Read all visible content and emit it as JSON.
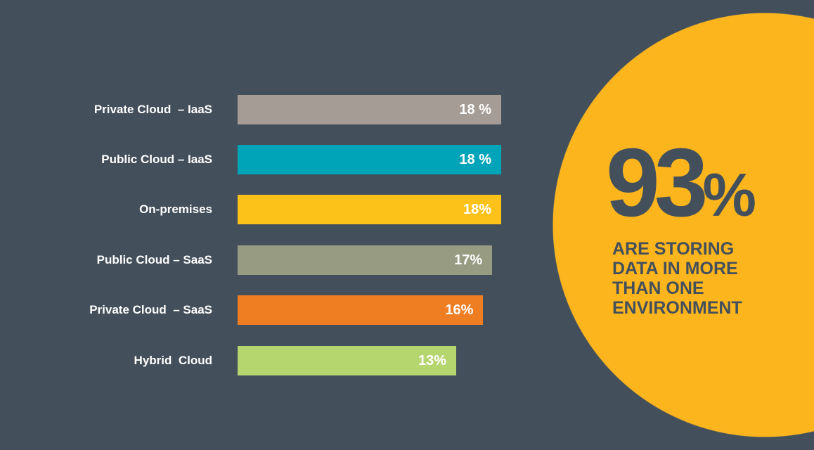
{
  "chart_data": {
    "type": "bar",
    "orientation": "horizontal",
    "categories": [
      "Private Cloud  – IaaS",
      "Public Cloud – IaaS",
      "On-premises",
      "Public Cloud – SaaS",
      "Private Cloud  – SaaS",
      "Hybrid  Cloud"
    ],
    "values": [
      18,
      18,
      18,
      17,
      16,
      13
    ],
    "value_labels": [
      "18 %",
      "18 %",
      "18%",
      "17%",
      "16%",
      "13%"
    ],
    "colors": [
      "#a59c96",
      "#00a4b8",
      "#fdc21a",
      "#969b82",
      "#ef7d22",
      "#b5d56e"
    ],
    "title": "",
    "xlabel": "",
    "ylabel": "",
    "grid": false
  },
  "callout": {
    "number": "93",
    "percent": "%",
    "text": "ARE STORING DATA IN MORE THAN ONE ENVIRONMENT",
    "color": "#fdb51e"
  }
}
